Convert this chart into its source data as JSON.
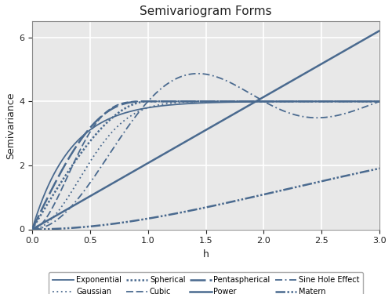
{
  "title": "Semivariogram Forms",
  "xlabel": "h",
  "ylabel": "Semivariance",
  "xlim": [
    0.0,
    3.0
  ],
  "ylim": [
    0.0,
    6.5
  ],
  "xticks": [
    0.0,
    0.5,
    1.0,
    1.5,
    2.0,
    2.5,
    3.0
  ],
  "yticks": [
    0,
    2,
    4,
    6
  ],
  "sill": 4.0,
  "range_param": 1.0,
  "color": "#4a6a8f",
  "plot_bg": "#e8e8e8",
  "fig_bg": "#ffffff",
  "grid_color": "#ffffff",
  "figsize": [
    5.0,
    3.75
  ],
  "dpi": 100,
  "power_scale": 2.07,
  "power_exp": 1.0,
  "matern_scale": 3.0
}
